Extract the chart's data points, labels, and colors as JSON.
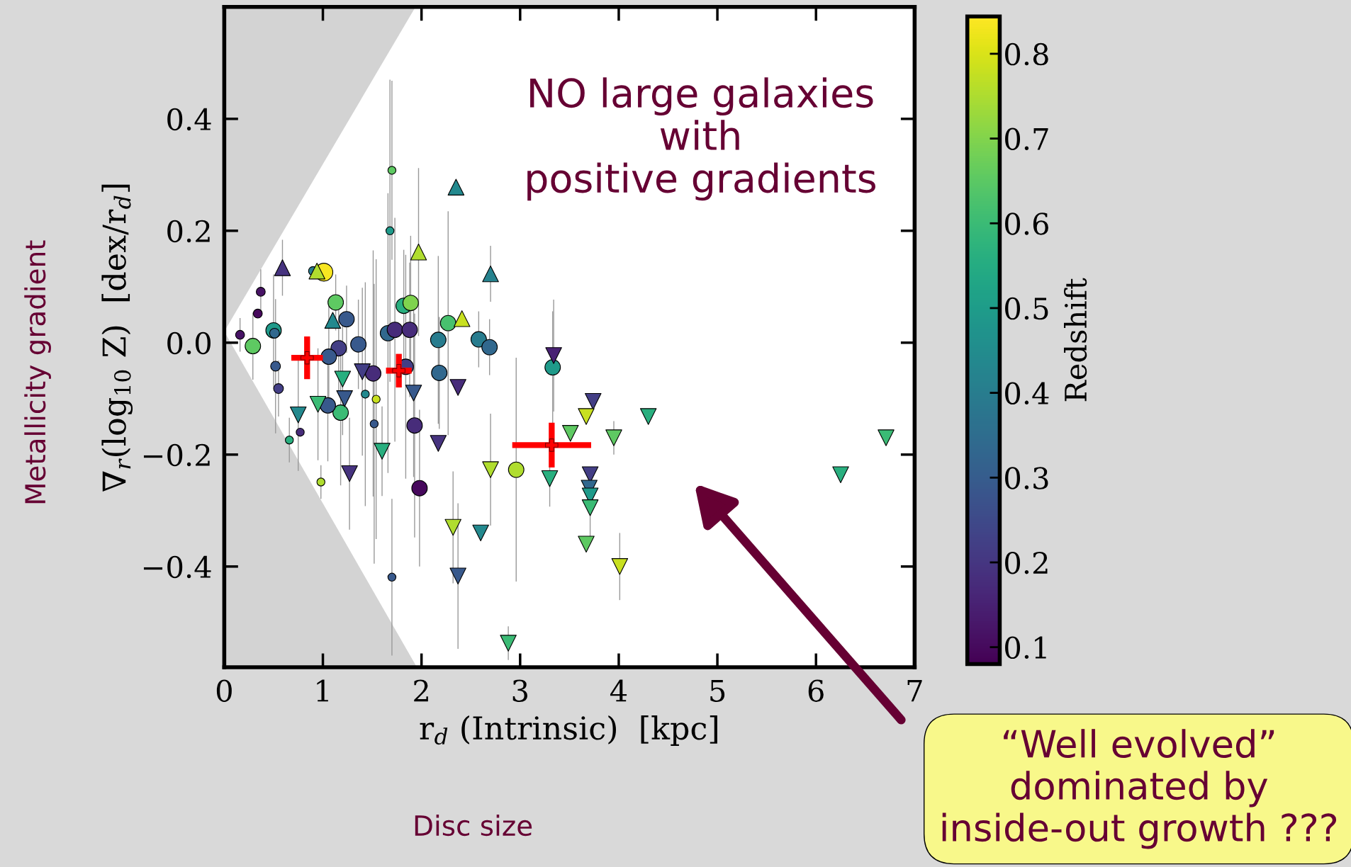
{
  "chart_data": {
    "type": "scatter",
    "xlabel": "r$_{d}$ (Intrinsic)  [kpc]",
    "ylabel": "∇$_{r}$(log$_{10}$ Z)  [dex/r$_{d}$]",
    "clabel": "Redshift",
    "clim": [
      0.08,
      0.844
    ],
    "cticks": [
      0.1,
      0.2,
      0.3,
      0.4,
      0.5,
      0.6,
      0.7,
      0.8
    ],
    "xlim": [
      0,
      7
    ],
    "xticks": [
      0,
      1,
      2,
      3,
      4,
      5,
      6,
      7
    ],
    "ylim": [
      -0.58,
      0.6
    ],
    "yticks": [
      {
        "value": -0.4,
        "label": "−0.4"
      },
      {
        "value": -0.2,
        "label": "−0.2"
      },
      {
        "value": 0.0,
        "label": "0.0"
      },
      {
        "value": 0.2,
        "label": "0.2"
      },
      {
        "value": 0.4,
        "label": "0.4"
      }
    ],
    "grid": false,
    "legend": false,
    "annotations": [
      "NO large galaxies\nwith\npositive gradients",
      "Metallicity gradient",
      "Disc size",
      "“Well evolved”\ndominated by\ninside-out growth ???"
    ],
    "series": [
      {
        "type": "bubble",
        "marker": "circle",
        "x": [
          0.16,
          0.29,
          0.34,
          0.37,
          0.5,
          0.51,
          0.52,
          0.55,
          0.66,
          0.77,
          0.9,
          1.01,
          0.98,
          1.13,
          1.24,
          1.16,
          1.06,
          1.36,
          1.18,
          1.05,
          1.43,
          1.54,
          1.52,
          1.7,
          1.7,
          1.68,
          1.66,
          1.73,
          1.88,
          1.51,
          1.84,
          2.18,
          2.17,
          2.27,
          1.82,
          1.89,
          2.58,
          2.69,
          3.33,
          1.93,
          1.98,
          2.96
        ],
        "values": [
          0.014,
          -0.006,
          0.052,
          0.091,
          0.022,
          0.017,
          -0.042,
          -0.082,
          -0.174,
          -0.16,
          0.128,
          0.126,
          -0.249,
          0.072,
          0.042,
          -0.01,
          -0.025,
          -0.003,
          -0.125,
          -0.112,
          -0.092,
          -0.101,
          -0.145,
          -0.419,
          0.308,
          0.2,
          0.017,
          0.023,
          0.023,
          -0.055,
          -0.043,
          -0.054,
          0.005,
          0.035,
          0.066,
          0.071,
          0.006,
          -0.008,
          -0.044,
          -0.148,
          -0.26,
          -0.227
        ],
        "sizes": [
          0.25,
          0.75,
          0.25,
          0.25,
          0.75,
          0.3,
          0.3,
          0.3,
          0.2,
          0.2,
          0.25,
          1,
          0.2,
          0.75,
          0.75,
          0.75,
          0.75,
          0.75,
          0.75,
          0.75,
          0.2,
          0.2,
          0.2,
          0.2,
          0.2,
          0.2,
          0.75,
          0.75,
          0.75,
          0.75,
          0.75,
          0.75,
          0.75,
          0.75,
          0.75,
          0.75,
          0.75,
          0.75,
          0.75,
          0.75,
          0.75,
          0.75
        ],
        "colors": [
          "#471365",
          "#5ec962",
          "#46085c",
          "#471365",
          "#1f9a8a",
          "#31688e",
          "#38598c",
          "#433e85",
          "#29af7f",
          "#472c7a",
          "#287c8e",
          "#f8e621",
          "#b0dd2f",
          "#5ec962",
          "#38598c",
          "#433e85",
          "#38598c",
          "#38598c",
          "#3bbb75",
          "#38598c",
          "#23898e",
          "#c8e020",
          "#38598c",
          "#38598c",
          "#5ec962",
          "#1f9a8a",
          "#31688e",
          "#472c7a",
          "#472c7a",
          "#472c7a",
          "#433e85",
          "#31688e",
          "#287c8e",
          "#48c16e",
          "#29af7f",
          "#7fd34e",
          "#287c8e",
          "#31688e",
          "#1f9a8a",
          "#472c7a",
          "#46085c",
          "#b0dd2f"
        ],
        "errors": [
          0.03,
          0.06,
          null,
          0.04,
          0.1,
          null,
          0.12,
          0.05,
          0.04,
          null,
          null,
          null,
          0.03,
          0.05,
          0.06,
          0.08,
          0.1,
          0.08,
          0.13,
          0.1,
          0.2,
          0.25,
          0.25,
          0.14,
          0.16,
          0.27,
          0.25,
          0.2,
          0.12,
          0.22,
          0.2,
          0.1,
          0.15,
          0.2,
          0.1,
          0.12,
          0.05,
          0.05,
          0.1,
          0.2,
          0.14,
          0.2
        ]
      },
      {
        "marker": "triangle",
        "x": [
          0.59,
          0.94,
          1.1,
          1.97,
          2.35,
          2.7,
          2.41
        ],
        "values": [
          0.134,
          0.128,
          0.04,
          0.162,
          0.278,
          0.123,
          0.043
        ],
        "colors": [
          "#46337f",
          "#b0dd2f",
          "#23898e",
          "#b0dd2f",
          "#23898e",
          "#26828e",
          "#c8e020"
        ],
        "errors": [
          0.05,
          null,
          null,
          0.15,
          null,
          0.05,
          null
        ]
      },
      {
        "marker": "triangle_down",
        "x": [
          0.75,
          0.95,
          1.22,
          1.2,
          1.4,
          1.75,
          1.92,
          2.37,
          3.34,
          2.17,
          1.6,
          1.27,
          2.7,
          3.3,
          2.32,
          2.6,
          2.37,
          2.88,
          3.74,
          3.67,
          3.51,
          3.95,
          4.3,
          6.71,
          6.25,
          3.71,
          3.7,
          3.71,
          3.71,
          3.67,
          4.01
        ],
        "values": [
          -0.129,
          -0.11,
          -0.1,
          -0.065,
          -0.052,
          null,
          -0.09,
          -0.08,
          -0.023,
          -0.18,
          -0.194,
          -0.234,
          -0.227,
          -0.243,
          -0.33,
          -0.34,
          -0.417,
          -0.537,
          -0.105,
          -0.132,
          -0.162,
          -0.17,
          -0.132,
          -0.17,
          -0.236,
          -0.236,
          -0.26,
          -0.274,
          -0.295,
          -0.36,
          -0.4
        ],
        "colors": [
          "#23898e",
          "#3bbb75",
          "#38598c",
          "#29af7f",
          "#433e85",
          "#38598c",
          "#38598c",
          "#472c7a",
          "#482173",
          "#46337f",
          "#29af7f",
          "#46337f",
          "#b0dd2f",
          "#29af7f",
          "#b0dd2f",
          "#23898e",
          "#38598c",
          "#3bbb75",
          "#433e85",
          "#c8e020",
          "#5ec962",
          "#5ec962",
          "#29af7f",
          "#3bbb75",
          "#29af7f",
          "#433e85",
          "#31688e",
          "#1f9a8a",
          "#3bbb75",
          "#5ec962",
          "#c8e020"
        ],
        "errors": [
          0.1,
          0.1,
          null,
          0.1,
          0.15,
          null,
          0.15,
          null,
          0.1,
          null,
          0.08,
          0.1,
          0.1,
          0.05,
          0.1,
          null,
          0.13,
          0.03,
          null,
          null,
          null,
          0.03,
          null,
          null,
          null,
          null,
          null,
          null,
          0.06,
          null,
          0.06
        ]
      },
      {
        "marker": "cross",
        "color": "#ff0000",
        "x": [
          0.84,
          1.77,
          3.32
        ],
        "values": [
          -0.027,
          -0.05,
          -0.183
        ],
        "xerrors": [
          0.16,
          0.13,
          0.4
        ],
        "errors": [
          0.038,
          0.03,
          0.04
        ]
      }
    ]
  }
}
